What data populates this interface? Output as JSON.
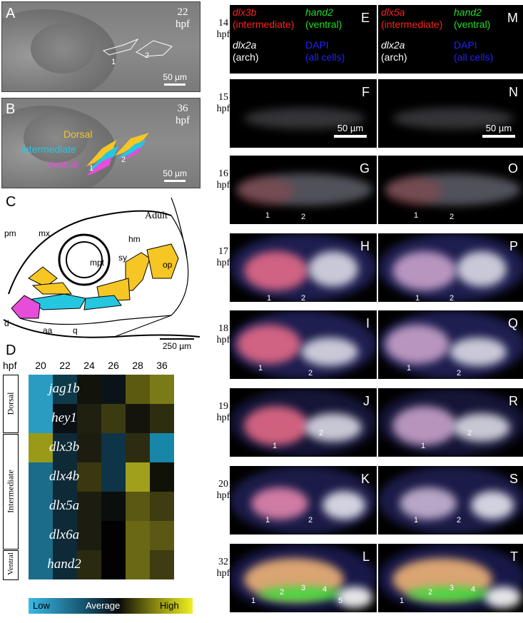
{
  "panels": {
    "A": {
      "letter": "A",
      "stage": [
        "22",
        "hpf"
      ],
      "scale": "50 µm",
      "arch_numbers": [
        "1",
        "2"
      ]
    },
    "B": {
      "letter": "B",
      "stage": [
        "36",
        "hpf"
      ],
      "scale": "50 µm",
      "domains": [
        "Dorsal",
        "Intermediate",
        "Ventral"
      ],
      "arch_numbers": [
        "1",
        "2"
      ]
    },
    "C": {
      "letter": "C",
      "title": "Adult",
      "scale": "250 µm",
      "labels": [
        "pm",
        "mx",
        "mpt",
        "sy",
        "hm",
        "op",
        "d",
        "aa",
        "q"
      ]
    },
    "D": {
      "letter": "D"
    }
  },
  "heatmap": {
    "axis_label": "hpf",
    "columns": [
      "20",
      "22",
      "24",
      "26",
      "28",
      "36"
    ],
    "groups": [
      "Dorsal",
      "Intermediate",
      "Ventral"
    ],
    "genes": [
      "jag1b",
      "hey1",
      "dlx3b",
      "dlx4b",
      "dlx5a",
      "dlx6a",
      "hand2"
    ],
    "colors": [
      [
        "#2a9cc2",
        "#0f3a4a",
        "#12140b",
        "#0a1418",
        "#5c5a10",
        "#7a7a18"
      ],
      [
        "#2a9cc2",
        "#0a1014",
        "#1f2010",
        "#3c3a10",
        "#15140c",
        "#2e2d10"
      ],
      [
        "#9a9a18",
        "#0e2a36",
        "#1c1d10",
        "#0e3448",
        "#2e2c10",
        "#1786a8"
      ],
      [
        "#1a6c8a",
        "#0e2a36",
        "#3a3810",
        "#0e3448",
        "#a0a01c",
        "#101208"
      ],
      [
        "#1a6c8a",
        "#0e2a36",
        "#1c1d10",
        "#0a0e0c",
        "#5a5812",
        "#3e3c10"
      ],
      [
        "#1a6c8a",
        "#0e2a36",
        "#1c1d10",
        "#020202",
        "#6a6814",
        "#5a5812"
      ],
      [
        "#1a6c8a",
        "#0e2a36",
        "#2a2a10",
        "#020202",
        "#6a6814",
        "#3e3c10"
      ]
    ],
    "legend": [
      "Low",
      "Average",
      "High"
    ]
  },
  "fluor_header_left": {
    "g1": "dlx3b",
    "g1d": "(intermediate)",
    "g2": "hand2",
    "g2d": "(ventral)",
    "g3": "dlx2a",
    "g3d": "(arch)",
    "g4": "DAPI",
    "g4d": "(all cells)"
  },
  "fluor_header_right": {
    "g1": "dlx5a",
    "g1d": "(intermediate)",
    "g2": "hand2",
    "g2d": "(ventral)",
    "g3": "dlx2a",
    "g3d": "(arch)",
    "g4": "DAPI",
    "g4d": "(all cells)"
  },
  "stages": [
    [
      "14",
      "hpf"
    ],
    [
      "15",
      "hpf"
    ],
    [
      "16",
      "hpf"
    ],
    [
      "17",
      "hpf"
    ],
    [
      "18",
      "hpf"
    ],
    [
      "19",
      "hpf"
    ],
    [
      "20",
      "hpf"
    ],
    [
      "32",
      "hpf"
    ]
  ],
  "left_letters": [
    "E",
    "F",
    "G",
    "H",
    "I",
    "J",
    "K",
    "L"
  ],
  "right_letters": [
    "M",
    "N",
    "O",
    "P",
    "Q",
    "R",
    "S",
    "T"
  ],
  "fluor_scale": "50 µm",
  "arch_numbers": [
    "1",
    "2",
    "3",
    "4",
    "5"
  ]
}
